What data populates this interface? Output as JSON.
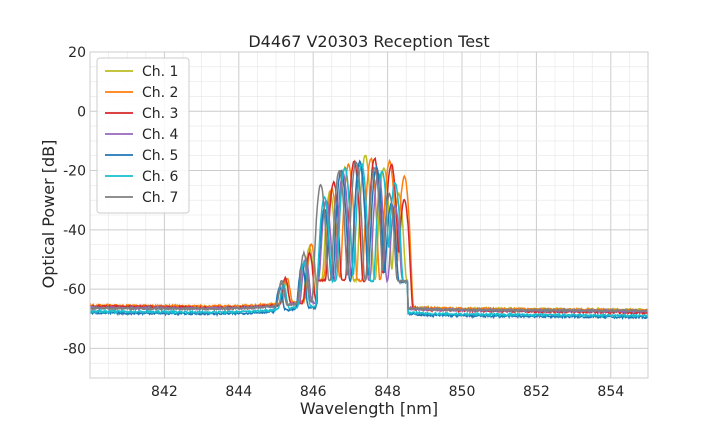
{
  "chart_data": {
    "type": "line",
    "title": "D4467 V20303 Reception Test",
    "xlabel": "Wavelength [nm]",
    "ylabel": "Optical Power [dB]",
    "xlim": [
      840,
      855
    ],
    "ylim": [
      -90,
      20
    ],
    "xticks": [
      842,
      844,
      846,
      848,
      850,
      852,
      854
    ],
    "yticks": [
      -80,
      -60,
      -40,
      -20,
      0,
      20
    ],
    "grid": true,
    "legend_position": "top-left",
    "series": [
      {
        "name": "Ch. 1",
        "color": "#bcbd22",
        "baseline_start": -65.8,
        "baseline_end": -67.0,
        "peaks": [
          [
            845.25,
            -58
          ],
          [
            845.9,
            -46
          ],
          [
            846.45,
            -27
          ],
          [
            846.85,
            -19
          ],
          [
            847.4,
            -15
          ],
          [
            847.9,
            -19
          ],
          [
            848.3,
            -28
          ]
        ]
      },
      {
        "name": "Ch. 2",
        "color": "#ff7f0e",
        "baseline_start": -65.5,
        "baseline_end": -67.2,
        "peaks": [
          [
            845.3,
            -57
          ],
          [
            845.95,
            -45
          ],
          [
            846.5,
            -26
          ],
          [
            846.95,
            -18
          ],
          [
            847.55,
            -16
          ],
          [
            848.05,
            -17
          ],
          [
            848.45,
            -22
          ]
        ]
      },
      {
        "name": "Ch. 3",
        "color": "#d62728",
        "baseline_start": -65.8,
        "baseline_end": -68.0,
        "peaks": [
          [
            845.25,
            -57
          ],
          [
            845.9,
            -48
          ],
          [
            846.55,
            -24
          ],
          [
            847.1,
            -17
          ],
          [
            847.65,
            -16
          ],
          [
            848.1,
            -18
          ],
          [
            848.45,
            -30
          ]
        ]
      },
      {
        "name": "Ch. 4",
        "color": "#9467bd",
        "baseline_start": -66.3,
        "baseline_end": -67.5,
        "peaks": [
          [
            845.15,
            -59
          ],
          [
            845.8,
            -50
          ],
          [
            846.35,
            -30
          ],
          [
            846.8,
            -21
          ],
          [
            847.25,
            -18
          ],
          [
            847.75,
            -21
          ],
          [
            848.2,
            -32
          ]
        ]
      },
      {
        "name": "Ch. 5",
        "color": "#1f77b4",
        "baseline_start": -68.0,
        "baseline_end": -69.5,
        "peaks": [
          [
            845.1,
            -60
          ],
          [
            845.7,
            -52
          ],
          [
            846.3,
            -33
          ],
          [
            846.75,
            -20
          ],
          [
            847.25,
            -17
          ],
          [
            847.7,
            -19
          ],
          [
            848.1,
            -31
          ]
        ]
      },
      {
        "name": "Ch. 6",
        "color": "#17becf",
        "baseline_start": -67.5,
        "baseline_end": -69.0,
        "peaks": [
          [
            845.2,
            -59
          ],
          [
            845.75,
            -51
          ],
          [
            846.3,
            -29
          ],
          [
            846.85,
            -19
          ],
          [
            847.3,
            -18
          ],
          [
            847.85,
            -20
          ],
          [
            848.2,
            -24
          ]
        ]
      },
      {
        "name": "Ch. 7",
        "color": "#7f7f7f",
        "baseline_start": -66.5,
        "baseline_end": -67.3,
        "peaks": [
          [
            845.15,
            -58
          ],
          [
            845.75,
            -48
          ],
          [
            846.2,
            -25
          ],
          [
            846.7,
            -20
          ],
          [
            847.15,
            -17
          ],
          [
            847.65,
            -19
          ],
          [
            848.05,
            -28
          ]
        ]
      }
    ]
  }
}
